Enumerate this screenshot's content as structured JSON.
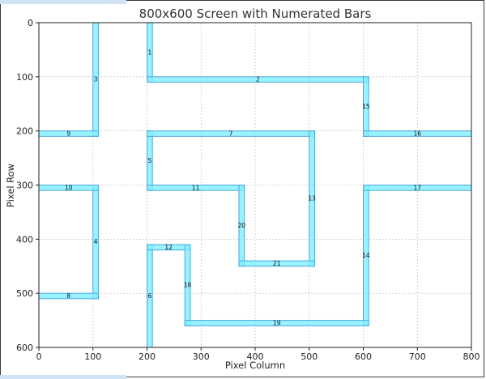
{
  "chart_data": {
    "type": "diagram",
    "title": "800x600 Screen with Numerated Bars",
    "xlabel": "Pixel Column",
    "ylabel": "Pixel Row",
    "xlim": [
      0,
      800
    ],
    "ylim": [
      0,
      600
    ],
    "y_inverted": true,
    "x_ticks": [
      0,
      100,
      200,
      300,
      400,
      500,
      600,
      700,
      800
    ],
    "y_ticks": [
      0,
      100,
      200,
      300,
      400,
      500,
      600
    ],
    "grid": true,
    "bar_color": "#7fefff",
    "bar_edge_color": "#4aa8e0",
    "bars": [
      {
        "label": "1",
        "x0": 200,
        "y0": 0,
        "x1": 210,
        "y1": 110
      },
      {
        "label": "2",
        "x0": 200,
        "y0": 100,
        "x1": 610,
        "y1": 110
      },
      {
        "label": "3",
        "x0": 100,
        "y0": 0,
        "x1": 110,
        "y1": 210
      },
      {
        "label": "4",
        "x0": 100,
        "y0": 300,
        "x1": 110,
        "y1": 510
      },
      {
        "label": "5",
        "x0": 200,
        "y0": 200,
        "x1": 210,
        "y1": 310
      },
      {
        "label": "6",
        "x0": 200,
        "y0": 410,
        "x1": 210,
        "y1": 600
      },
      {
        "label": "7",
        "x0": 200,
        "y0": 200,
        "x1": 510,
        "y1": 210
      },
      {
        "label": "8",
        "x0": 0,
        "y0": 500,
        "x1": 110,
        "y1": 510
      },
      {
        "label": "9",
        "x0": 0,
        "y0": 200,
        "x1": 110,
        "y1": 210
      },
      {
        "label": "10",
        "x0": 0,
        "y0": 300,
        "x1": 110,
        "y1": 310
      },
      {
        "label": "11",
        "x0": 200,
        "y0": 300,
        "x1": 380,
        "y1": 310
      },
      {
        "label": "12",
        "x0": 200,
        "y0": 410,
        "x1": 280,
        "y1": 420
      },
      {
        "label": "13",
        "x0": 500,
        "y0": 200,
        "x1": 510,
        "y1": 450
      },
      {
        "label": "14",
        "x0": 600,
        "y0": 300,
        "x1": 610,
        "y1": 560
      },
      {
        "label": "15",
        "x0": 600,
        "y0": 100,
        "x1": 610,
        "y1": 210
      },
      {
        "label": "16",
        "x0": 600,
        "y0": 200,
        "x1": 800,
        "y1": 210
      },
      {
        "label": "17",
        "x0": 600,
        "y0": 300,
        "x1": 800,
        "y1": 310
      },
      {
        "label": "18",
        "x0": 270,
        "y0": 410,
        "x1": 280,
        "y1": 560
      },
      {
        "label": "19",
        "x0": 270,
        "y0": 550,
        "x1": 610,
        "y1": 560
      },
      {
        "label": "20",
        "x0": 370,
        "y0": 300,
        "x1": 380,
        "y1": 450
      },
      {
        "label": "21",
        "x0": 370,
        "y0": 440,
        "x1": 510,
        "y1": 450
      }
    ]
  }
}
